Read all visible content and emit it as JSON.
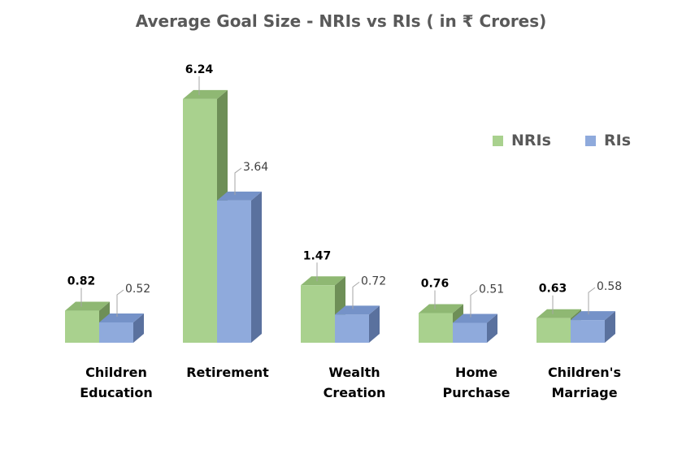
{
  "chart_data": {
    "type": "bar",
    "title": "Average Goal Size - NRIs vs RIs ( in ₹ Crores)",
    "categories": [
      [
        "Children",
        "Education"
      ],
      [
        "Retirement"
      ],
      [
        "Wealth",
        "Creation"
      ],
      [
        "Home",
        "Purchase"
      ],
      [
        "Children's",
        "Marriage"
      ]
    ],
    "series": [
      {
        "name": "NRIs",
        "values": [
          0.82,
          6.24,
          1.47,
          0.76,
          0.63
        ],
        "color": "#a9d18e"
      },
      {
        "name": "RIs",
        "values": [
          0.52,
          3.64,
          0.72,
          0.51,
          0.58
        ],
        "color": "#8faadc"
      }
    ],
    "legend_position": "right",
    "grid": false,
    "style": "3d-clustered-column"
  }
}
